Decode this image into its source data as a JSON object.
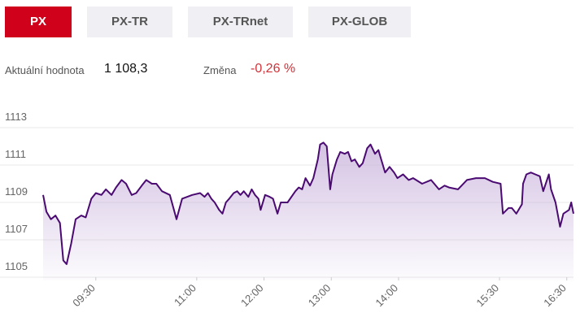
{
  "tabs": [
    "PX",
    "PX-TR",
    "PX-TRnet",
    "PX-GLOB"
  ],
  "stats": {
    "current_label": "Aktuální hodnota",
    "current_value": "1 108,3",
    "change_label": "Změna",
    "change_value": "-0,26 %"
  },
  "chart_data": {
    "type": "line",
    "color": "#4a0a72",
    "grid": true,
    "xlim": [
      523,
      996
    ],
    "ylim": [
      1105,
      1113
    ],
    "yticks": [
      1105,
      1107,
      1109,
      1111,
      1113
    ],
    "xticks": [
      {
        "value": 570,
        "label": "09:30"
      },
      {
        "value": 660,
        "label": "11:00"
      },
      {
        "value": 720,
        "label": "12:00"
      },
      {
        "value": 780,
        "label": "13:00"
      },
      {
        "value": 840,
        "label": "14:00"
      },
      {
        "value": 930,
        "label": "15:30"
      },
      {
        "value": 990,
        "label": "16:30"
      }
    ],
    "x": [
      523,
      526,
      530,
      534,
      538,
      541,
      544,
      548,
      552,
      557,
      561,
      566,
      570,
      575,
      579,
      584,
      588,
      593,
      597,
      602,
      606,
      611,
      615,
      620,
      624,
      629,
      636,
      642,
      647,
      656,
      663,
      667,
      670,
      673,
      676,
      680,
      683,
      686,
      689,
      693,
      696,
      699,
      702,
      706,
      709,
      712,
      715,
      717,
      721,
      725,
      728,
      732,
      735,
      741,
      748,
      751,
      754,
      757,
      761,
      764,
      768,
      770,
      773,
      776,
      779,
      781,
      785,
      788,
      792,
      795,
      798,
      801,
      805,
      808,
      812,
      815,
      819,
      822,
      825,
      828,
      832,
      836,
      839,
      844,
      849,
      853,
      861,
      869,
      876,
      881,
      885,
      893,
      901,
      909,
      917,
      924,
      931,
      933,
      938,
      941,
      945,
      950,
      951,
      954,
      958,
      962,
      966,
      969,
      974,
      976,
      980,
      984,
      987,
      992,
      994,
      996
    ],
    "series": [
      {
        "values": [
          1109.4,
          1108.5,
          1108.1,
          1108.3,
          1107.9,
          1105.9,
          1105.7,
          1106.8,
          1108.1,
          1108.3,
          1108.2,
          1109.2,
          1109.5,
          1109.4,
          1109.7,
          1109.4,
          1109.8,
          1110.2,
          1110.0,
          1109.4,
          1109.5,
          1109.9,
          1110.2,
          1110.0,
          1110.0,
          1109.6,
          1109.4,
          1108.1,
          1109.2,
          1109.4,
          1109.5,
          1109.3,
          1109.5,
          1109.2,
          1109.0,
          1108.6,
          1108.4,
          1109.0,
          1109.2,
          1109.5,
          1109.6,
          1109.4,
          1109.6,
          1109.3,
          1109.7,
          1109.4,
          1109.2,
          1108.6,
          1109.4,
          1109.3,
          1109.2,
          1108.4,
          1109.0,
          1109.0,
          1109.6,
          1109.8,
          1109.7,
          1110.3,
          1109.9,
          1110.3,
          1111.3,
          1112.1,
          1112.2,
          1112.0,
          1109.7,
          1110.5,
          1111.3,
          1111.7,
          1111.6,
          1111.7,
          1111.2,
          1111.3,
          1110.9,
          1111.1,
          1111.9,
          1112.1,
          1111.6,
          1111.8,
          1111.2,
          1110.6,
          1110.9,
          1110.6,
          1110.3,
          1110.5,
          1110.2,
          1110.3,
          1110.0,
          1110.2,
          1109.7,
          1109.9,
          1109.8,
          1109.7,
          1110.2,
          1110.3,
          1110.3,
          1110.1,
          1110.0,
          1108.4,
          1108.7,
          1108.7,
          1108.4,
          1108.9,
          1110.0,
          1110.5,
          1110.6,
          1110.5,
          1110.4,
          1109.6,
          1110.5,
          1109.7,
          1109.0,
          1107.7,
          1108.4,
          1108.6,
          1109.0,
          1108.4
        ]
      }
    ]
  }
}
